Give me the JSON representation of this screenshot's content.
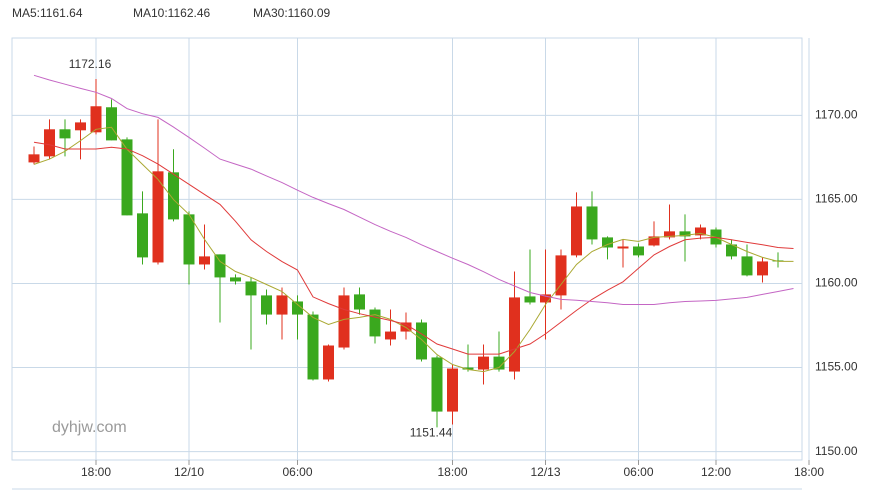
{
  "chart_data": {
    "type": "candlestick",
    "watermark": "dyhjw.com",
    "up_color": "#e0301e",
    "down_color": "#3aa81e",
    "grid": true,
    "categories": [
      null,
      null,
      null,
      null,
      "18:00",
      null,
      null,
      null,
      null,
      null,
      "12/10",
      null,
      null,
      null,
      null,
      null,
      null,
      "06:00",
      null,
      null,
      null,
      null,
      null,
      null,
      null,
      null,
      null,
      "18:00",
      null,
      null,
      null,
      null,
      null,
      "12/13",
      null,
      null,
      null,
      null,
      null,
      "06:00",
      null,
      null,
      null,
      null,
      "12:00",
      null,
      null,
      null,
      null,
      null,
      "18:00"
    ],
    "open": [
      1167.2,
      1167.56,
      1169.17,
      1169.11,
      1168.99,
      1170.48,
      1168.57,
      1164.17,
      1161.25,
      1166.61,
      1164.11,
      1161.13,
      1161.73,
      1160.36,
      1160.12,
      1159.29,
      1158.15,
      1158.93,
      1158.15,
      1154.29,
      1156.19,
      1159.35,
      1158.45,
      1156.67,
      1157.14,
      1157.68,
      1155.6,
      1152.38,
      1155.0,
      1154.88,
      1155.65,
      1154.76,
      1159.23,
      1158.87,
      1159.29,
      1161.67,
      1164.58,
      1162.74,
      1162.08,
      1162.2,
      1162.26,
      1162.74,
      1163.1,
      1162.86,
      1163.21,
      1162.32,
      1161.61,
      1160.48,
      1161.37,
      null,
      null
    ],
    "high": [
      1168.15,
      1169.76,
      1169.76,
      1169.76,
      1172.16,
      1170.95,
      1168.69,
      1165.48,
      1169.76,
      1167.98,
      1164.29,
      1163.51,
      1161.73,
      1160.54,
      1160.36,
      1159.64,
      1159.76,
      1159.29,
      1158.33,
      1156.37,
      1159.76,
      1159.76,
      1158.57,
      1158.45,
      1158.27,
      1157.86,
      1155.71,
      1155.18,
      1156.37,
      1156.37,
      1157.14,
      1160.71,
      1162.02,
      1162.02,
      1162.02,
      1165.42,
      1165.48,
      1162.8,
      1162.62,
      1162.38,
      1163.69,
      1164.7,
      1164.11,
      1163.51,
      1163.33,
      1162.62,
      1162.32,
      1161.55,
      1161.85,
      null,
      null
    ],
    "low": [
      1167.08,
      1167.38,
      1167.56,
      1167.38,
      1168.87,
      1168.51,
      1164.05,
      1161.13,
      1161.13,
      1163.69,
      1159.94,
      1160.83,
      1157.68,
      1159.94,
      1156.07,
      1157.56,
      1156.67,
      1156.67,
      1154.23,
      1154.17,
      1156.07,
      1158.15,
      1156.43,
      1156.31,
      1156.67,
      1155.36,
      1151.44,
      1151.61,
      1154.76,
      1153.99,
      1154.76,
      1154.29,
      1158.75,
      1156.67,
      1158.45,
      1161.55,
      1162.32,
      1161.43,
      1160.95,
      1161.55,
      1162.2,
      1162.62,
      1161.31,
      1162.62,
      1162.14,
      1161.43,
      1160.42,
      1160.06,
      1160.95,
      null,
      null
    ],
    "close": [
      1167.68,
      1169.17,
      1168.63,
      1169.58,
      1170.54,
      1168.51,
      1164.05,
      1161.55,
      1166.67,
      1163.81,
      1161.13,
      1161.61,
      1160.36,
      1160.12,
      1159.29,
      1158.15,
      1159.29,
      1158.15,
      1154.29,
      1156.31,
      1159.29,
      1158.45,
      1156.85,
      1157.14,
      1157.68,
      1155.48,
      1152.38,
      1154.94,
      1154.88,
      1155.65,
      1154.88,
      1159.17,
      1158.87,
      1159.35,
      1161.67,
      1164.58,
      1162.62,
      1162.14,
      1162.2,
      1161.67,
      1162.8,
      1163.1,
      1162.8,
      1163.33,
      1162.32,
      1161.61,
      1160.48,
      1161.31,
      1161.31,
      null,
      null
    ],
    "series": [
      {
        "name": "MA5:1161.64",
        "color": "#aaa832",
        "values": [
          1167.08,
          1167.4,
          1167.86,
          1168.5,
          1169.17,
          1169.29,
          1167.98,
          1167.08,
          1166.19,
          1164.99,
          1164.11,
          1162.62,
          1161.31,
          1160.71,
          1160.36,
          1159.94,
          1159.52,
          1158.75,
          1157.98,
          1157.56,
          1157.86,
          1157.98,
          1158.15,
          1157.86,
          1157.38,
          1156.67,
          1155.77,
          1155.18,
          1154.88,
          1154.76,
          1155.0,
          1155.95,
          1157.26,
          1158.75,
          1159.94,
          1161.13,
          1161.9,
          1162.32,
          1162.62,
          1162.5,
          1162.74,
          1162.8,
          1162.86,
          1162.98,
          1162.74,
          1162.32,
          1161.9,
          1161.55,
          1161.31,
          1161.31,
          null
        ]
      },
      {
        "name": "MA10:1162.46",
        "color": "#e03a3a",
        "values": [
          1168.4,
          1168.25,
          1168.0,
          1168.0,
          1168.0,
          1168.1,
          1168.0,
          1167.6,
          1167.1,
          1166.5,
          1165.9,
          1165.3,
          1164.7,
          1163.7,
          1162.6,
          1161.9,
          1161.3,
          1160.8,
          1159.2,
          1158.8,
          1158.45,
          1158.2,
          1158.0,
          1157.8,
          1157.56,
          1157.0,
          1156.4,
          1156.1,
          1155.8,
          1155.8,
          1155.8,
          1156.1,
          1156.4,
          1157.0,
          1157.7,
          1158.4,
          1159.05,
          1159.6,
          1160.1,
          1160.9,
          1161.7,
          1162.2,
          1162.6,
          1162.7,
          1162.74,
          1162.6,
          1162.44,
          1162.3,
          1162.14,
          1162.08,
          null
        ]
      },
      {
        "name": "MA30:1160.09",
        "color": "#c466c4",
        "values": [
          1172.38,
          1172.1,
          1171.85,
          1171.6,
          1171.37,
          1171.0,
          1170.4,
          1170.1,
          1169.88,
          1169.3,
          1168.69,
          1168.05,
          1167.4,
          1167.1,
          1166.8,
          1166.4,
          1166.0,
          1165.55,
          1165.12,
          1164.75,
          1164.4,
          1163.95,
          1163.5,
          1163.1,
          1162.74,
          1162.3,
          1161.9,
          1161.5,
          1161.13,
          1160.7,
          1160.24,
          1159.85,
          1159.46,
          1159.25,
          1159.05,
          1159.0,
          1158.93,
          1158.85,
          1158.75,
          1158.75,
          1158.75,
          1158.85,
          1158.93,
          1158.96,
          1158.99,
          1159.08,
          1159.17,
          1159.35,
          1159.52,
          1159.7,
          null
        ]
      }
    ],
    "ylim": [
      1149.5,
      1174.6
    ],
    "yticks": [
      {
        "value": 1150,
        "label": "1150.00"
      },
      {
        "value": 1155,
        "label": "1155.00"
      },
      {
        "value": 1160,
        "label": "1160.00"
      },
      {
        "value": 1165,
        "label": "1165.00"
      },
      {
        "value": 1170,
        "label": "1170.00"
      }
    ]
  }
}
